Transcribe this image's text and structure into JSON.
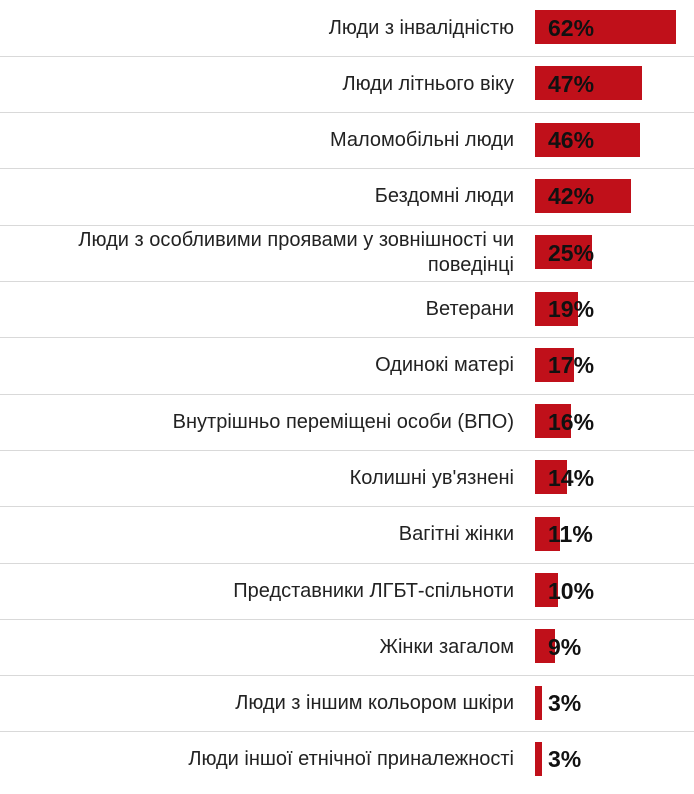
{
  "colors": {
    "bar": "#c0101a",
    "separator": "#d9d9d9",
    "text": "#222222"
  },
  "chart_data": {
    "type": "bar",
    "orientation": "horizontal",
    "title": "",
    "xlabel": "",
    "ylabel": "",
    "xlim": [
      0,
      62
    ],
    "categories": [
      "Люди з інвалідністю",
      "Люди літнього віку",
      "Маломобільні люди",
      "Бездомні люди",
      "Люди з особливими проявами у зовнішності чи поведінці",
      "Ветерани",
      "Одинокі матері",
      "Внутрішньо переміщені особи (ВПО)",
      "Колишні ув'язнені",
      "Вагітні жінки",
      "Представники ЛГБТ-спільноти",
      "Жінки загалом",
      "Люди з іншим кольором шкіри",
      "Люди іншої етнічної приналежності"
    ],
    "values": [
      62,
      47,
      46,
      42,
      25,
      19,
      17,
      16,
      14,
      11,
      10,
      9,
      3,
      3
    ],
    "value_labels": [
      "62%",
      "47%",
      "46%",
      "42%",
      "25%",
      "19%",
      "17%",
      "16%",
      "14%",
      "11%",
      "10%",
      "9%",
      "3%",
      "3%"
    ]
  }
}
